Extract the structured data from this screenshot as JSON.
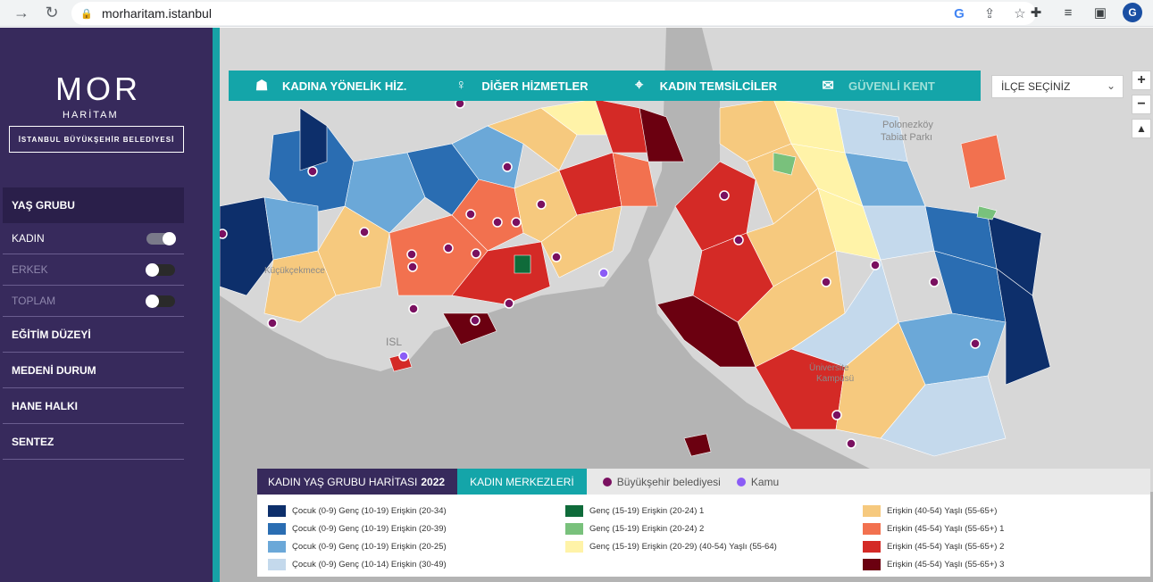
{
  "browser": {
    "url": "morharitam.istanbul",
    "profile_initial": "G"
  },
  "sidebar": {
    "logo_text": "MOR",
    "logo_sub": "HARİTAM",
    "logo_org": "İSTANBUL BÜYÜKŞEHİR BELEDİYESİ",
    "menu": [
      {
        "label": "YAŞ GRUBU",
        "active": true
      },
      {
        "label": "KADIN",
        "toggle": "on"
      },
      {
        "label": "ERKEK",
        "toggle": "off"
      },
      {
        "label": "TOPLAM",
        "toggle": "off"
      },
      {
        "label": "EĞİTİM DÜZEYİ"
      },
      {
        "label": "MEDENİ DURUM"
      },
      {
        "label": "HANE HALKI"
      },
      {
        "label": "SENTEZ"
      }
    ]
  },
  "topbar": {
    "tabs": [
      {
        "label": "KADINA YÖNELİK HİZ.",
        "icon": "hands-icon"
      },
      {
        "label": "DİĞER HİZMETLER",
        "icon": "female-icon"
      },
      {
        "label": "KADIN TEMSİLCİLER",
        "icon": "location-pin-icon"
      },
      {
        "label": "GÜVENLİ KENT",
        "icon": "chat-icon"
      }
    ],
    "district_select": "İLÇE SEÇİNİZ"
  },
  "map": {
    "labels": {
      "park": "Polonezköy\nTabiat Parkı",
      "isl": "ISL",
      "kucukcekmece": "Küçükçekmece",
      "univ": "Üniversite\nKampüsü"
    },
    "zoom_in": "+",
    "zoom_out": "−",
    "north": "▲"
  },
  "legend": {
    "title": "KADIN YAŞ GRUBU HARİTASI",
    "year": "2022",
    "centers_label": "KADIN MERKEZLERİ",
    "keys": [
      {
        "label": "Büyükşehir belediyesi",
        "color": "#7a1060"
      },
      {
        "label": "Kamu",
        "color": "#8b5cf6"
      }
    ],
    "columns": [
      [
        {
          "label": "Çocuk (0-9) Genç (10-19) Erişkin (20-34)",
          "color": "#0d2f6b"
        },
        {
          "label": "Çocuk (0-9) Genç (10-19) Erişkin (20-39)",
          "color": "#2a6db2"
        },
        {
          "label": "Çocuk (0-9) Genç (10-19) Erişkin (20-25)",
          "color": "#6ba8d8"
        },
        {
          "label": "Çocuk (0-9) Genç (10-14) Erişkin (30-49)",
          "color": "#c4d9ec"
        }
      ],
      [
        {
          "label": "Genç (15-19) Erişkin (20-24) 1",
          "color": "#0f6b3a"
        },
        {
          "label": "Genç (15-19) Erişkin (20-24) 2",
          "color": "#79c17c"
        },
        {
          "label": "Genç (15-19) Erişkin (20-29) (40-54) Yaşlı (55-64)",
          "color": "#fff3a8"
        }
      ],
      [
        {
          "label": "Erişkin (40-54) Yaşlı (55-65+)",
          "color": "#f6c97e"
        },
        {
          "label": "Erişkin (45-54) Yaşlı (55-65+) 1",
          "color": "#f2714f"
        },
        {
          "label": "Erişkin (45-54) Yaşlı (55-65+) 2",
          "color": "#d42a26"
        },
        {
          "label": "Erişkin (45-54) Yaşlı (55-65+) 3",
          "color": "#6b0010"
        }
      ]
    ]
  }
}
